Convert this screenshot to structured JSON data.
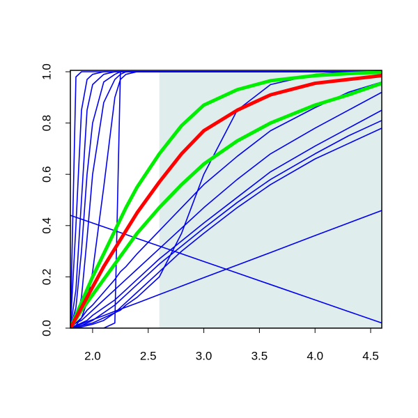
{
  "chart_data": {
    "type": "line",
    "x": [
      1.8,
      1.85,
      1.9,
      1.95,
      2.0,
      2.1,
      2.2,
      2.25,
      2.3,
      2.4,
      2.6,
      2.8,
      3.0,
      3.3,
      3.6,
      4.0,
      4.3,
      4.6
    ],
    "xlim": [
      1.8,
      4.6
    ],
    "ylim": [
      0,
      1
    ],
    "xticks": [
      {
        "value": 2.0,
        "label": "2.0"
      },
      2.5,
      {
        "value": 3.0,
        "label": "3.0"
      },
      3.5,
      {
        "value": 4.0,
        "label": "4.0"
      },
      4.5
    ],
    "yticks": [
      {
        "value": 0,
        "label": "0.0"
      },
      0.2,
      0.4,
      0.6,
      0.8,
      {
        "value": 1,
        "label": "1.0"
      }
    ],
    "shaded_region": {
      "xlim": [
        2.6,
        4.6
      ],
      "color": "#e0eded"
    },
    "series": [
      {
        "color": "#0000ee",
        "values": [
          0,
          0.98,
          1,
          1,
          1,
          1,
          1,
          1,
          1,
          1,
          1,
          1,
          1,
          1,
          1,
          1,
          1,
          1
        ]
      },
      {
        "color": "#0000ee",
        "values": [
          0,
          0.4,
          0.85,
          0.97,
          0.99,
          1,
          1,
          1,
          1,
          1,
          1,
          1,
          1,
          1,
          1,
          1,
          1,
          1
        ]
      },
      {
        "color": "#0000ee",
        "values": [
          0,
          0.15,
          0.5,
          0.85,
          0.95,
          0.99,
          1,
          1,
          1,
          1,
          1,
          1,
          1,
          1,
          1,
          1,
          1,
          1
        ]
      },
      {
        "color": "#0000ee",
        "values": [
          0,
          0.08,
          0.3,
          0.6,
          0.8,
          0.96,
          0.99,
          1,
          1,
          1,
          1,
          1,
          1,
          1,
          1,
          1,
          1,
          1
        ]
      },
      {
        "color": "#0000ee",
        "values": [
          0,
          0.03,
          0.12,
          0.35,
          0.6,
          0.88,
          0.97,
          0.99,
          1,
          1,
          1,
          1,
          1,
          1,
          1,
          1,
          1,
          1
        ]
      },
      {
        "color": "#0000ee",
        "values": [
          0,
          0.01,
          0.04,
          0.1,
          0.22,
          0.55,
          0.9,
          0.97,
          0.99,
          1,
          1,
          1,
          1,
          1,
          1,
          1,
          1,
          1
        ]
      },
      {
        "color": "#0000ee",
        "values": [
          0,
          0,
          0,
          0,
          0,
          0,
          0.02,
          1,
          1,
          1,
          1,
          1,
          1,
          1,
          1,
          1,
          1,
          1
        ]
      },
      {
        "color": "#0000ee",
        "values": [
          0,
          0.005,
          0.01,
          0.015,
          0.02,
          0.04,
          0.06,
          0.07,
          0.09,
          0.12,
          0.2,
          0.37,
          0.6,
          0.85,
          0.95,
          0.99,
          1,
          1
        ]
      },
      {
        "color": "#0000ee",
        "values": [
          0,
          0.02,
          0.04,
          0.07,
          0.09,
          0.14,
          0.19,
          0.22,
          0.24,
          0.29,
          0.38,
          0.47,
          0.56,
          0.67,
          0.77,
          0.86,
          0.92,
          0.96
        ]
      },
      {
        "color": "#0000ee",
        "values": [
          0,
          0.02,
          0.03,
          0.05,
          0.07,
          0.11,
          0.15,
          0.17,
          0.19,
          0.23,
          0.31,
          0.39,
          0.47,
          0.58,
          0.68,
          0.78,
          0.85,
          0.92
        ]
      },
      {
        "color": "#0000ee",
        "values": [
          0,
          0.01,
          0.02,
          0.03,
          0.05,
          0.08,
          0.11,
          0.13,
          0.15,
          0.19,
          0.27,
          0.34,
          0.41,
          0.51,
          0.61,
          0.71,
          0.78,
          0.85
        ]
      },
      {
        "color": "#0000ee",
        "values": [
          0,
          0.005,
          0.01,
          0.02,
          0.03,
          0.06,
          0.09,
          0.11,
          0.13,
          0.17,
          0.25,
          0.32,
          0.39,
          0.49,
          0.58,
          0.68,
          0.75,
          0.81
        ]
      },
      {
        "color": "#0000ee",
        "values": [
          0,
          0.002,
          0.005,
          0.01,
          0.015,
          0.03,
          0.06,
          0.08,
          0.1,
          0.14,
          0.22,
          0.3,
          0.37,
          0.47,
          0.56,
          0.66,
          0.72,
          0.78
        ]
      },
      {
        "color": "#0000ee",
        "values": [
          0.44,
          0.4325,
          0.425,
          0.4175,
          0.41,
          0.395,
          0.38,
          0.3725,
          0.365,
          0.35,
          0.32,
          0.29,
          0.26,
          0.215,
          0.17,
          0.11,
          0.065,
          0.02
        ]
      },
      {
        "color": "#0000ee",
        "values": [
          0,
          0.008,
          0.016,
          0.025,
          0.033,
          0.049,
          0.066,
          0.074,
          0.082,
          0.098,
          0.131,
          0.164,
          0.197,
          0.246,
          0.295,
          0.361,
          0.41,
          0.459
        ]
      },
      {
        "color": "#00ee00",
        "thick": true,
        "values": [
          0,
          0.05,
          0.1,
          0.15,
          0.2,
          0.29,
          0.38,
          0.425,
          0.47,
          0.55,
          0.68,
          0.79,
          0.87,
          0.93,
          0.965,
          0.985,
          0.993,
          0.998
        ]
      },
      {
        "color": "#00ee00",
        "thick": true,
        "values": [
          0,
          0.035,
          0.07,
          0.1,
          0.13,
          0.19,
          0.25,
          0.28,
          0.31,
          0.37,
          0.47,
          0.56,
          0.64,
          0.73,
          0.8,
          0.87,
          0.91,
          0.955
        ]
      },
      {
        "color": "#ff0000",
        "thick": true,
        "values": [
          0,
          0.04,
          0.08,
          0.12,
          0.16,
          0.24,
          0.31,
          0.345,
          0.38,
          0.45,
          0.57,
          0.68,
          0.77,
          0.85,
          0.91,
          0.955,
          0.97,
          0.985
        ]
      }
    ]
  }
}
